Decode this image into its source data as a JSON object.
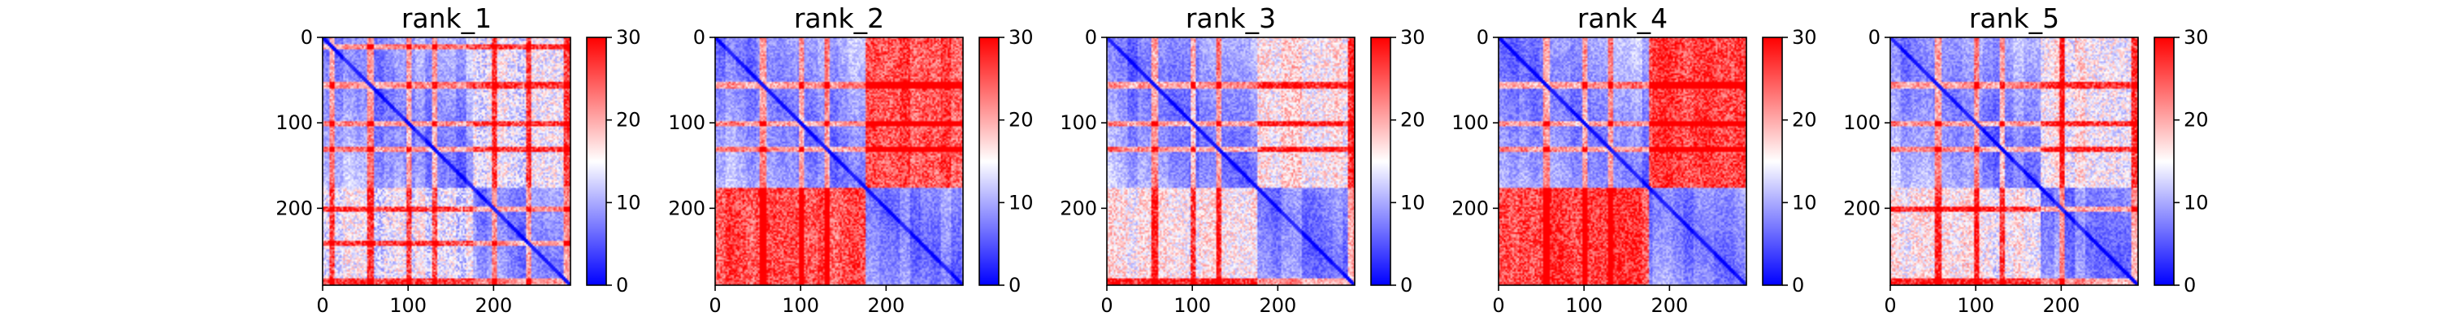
{
  "chart_data": {
    "type": "heatmap",
    "panels": [
      {
        "title": "rank_1",
        "matrix_size": 290,
        "blocks": [
          [
            0,
            175,
            175,
            290
          ]
        ],
        "hot_rows": [
          10,
          55,
          100,
          130,
          200,
          240,
          285
        ],
        "cross_hot": 0.2
      },
      {
        "title": "rank_2",
        "matrix_size": 290,
        "blocks": [
          [
            0,
            175,
            175,
            290
          ]
        ],
        "hot_rows": [
          55,
          100,
          130
        ],
        "cross_hot": 0.85
      },
      {
        "title": "rank_3",
        "matrix_size": 290,
        "blocks": [
          [
            0,
            175,
            175,
            290
          ]
        ],
        "hot_rows": [
          55,
          100,
          130,
          285
        ],
        "cross_hot": 0.35
      },
      {
        "title": "rank_4",
        "matrix_size": 290,
        "blocks": [
          [
            0,
            175,
            175,
            290
          ]
        ],
        "hot_rows": [
          55,
          100,
          130
        ],
        "cross_hot": 0.9
      },
      {
        "title": "rank_5",
        "matrix_size": 290,
        "blocks": [
          [
            0,
            175,
            175,
            290
          ]
        ],
        "hot_rows": [
          55,
          100,
          130,
          200,
          285
        ],
        "cross_hot": 0.3
      }
    ],
    "x_ticks": [
      0,
      100,
      200
    ],
    "x_tick_labels": [
      "0",
      "100",
      "200"
    ],
    "y_ticks": [
      0,
      100,
      200
    ],
    "y_tick_labels": [
      "0",
      "100",
      "200"
    ],
    "colorbar": {
      "range": [
        0,
        30
      ],
      "ticks": [
        0,
        10,
        20,
        30
      ],
      "tick_labels": [
        "0",
        "10",
        "20",
        "30"
      ],
      "colormap": "bwr",
      "colors": [
        "#0000ff",
        "#ffffff",
        "#ff0000"
      ]
    },
    "grid": false,
    "legend": false
  }
}
